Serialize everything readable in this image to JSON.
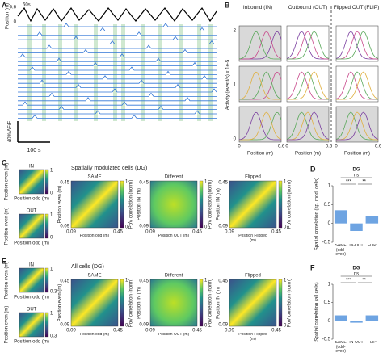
{
  "panels": {
    "A": {
      "label": "A",
      "y_label": "Position (m)",
      "y_ticks": [
        "0.6",
        "0"
      ],
      "time_label": "60s",
      "scale_y": "40% ΔF/F",
      "scale_x": "100 s"
    },
    "B": {
      "label": "B",
      "columns": [
        "Inbound (IN)",
        "Outbound (OUT)",
        "Flipped OUT (FLIP)"
      ],
      "y_label": "Activity (event/s) x 1e-5",
      "y_ticks": [
        "2",
        "1",
        "0"
      ],
      "x_ticks": [
        "0",
        "0.6"
      ],
      "x_label": "Position (m)"
    },
    "C": {
      "label": "C",
      "title": "Spatially modulated cells (DG)",
      "small_maps": [
        "IN",
        "OUT"
      ],
      "small_y_label": "Position even (m)",
      "small_x_label": "Position odd (m)",
      "small_colorbar_ticks": [
        "1",
        "0"
      ],
      "maps": [
        {
          "title": "SAME",
          "y_label": "Position even (m)",
          "x_label": "Position odd (m)"
        },
        {
          "title": "Different",
          "y_label": "Position IN (m)",
          "x_label": "Position OUT (m)"
        },
        {
          "title": "Flipped",
          "y_label": "Position IN (m)",
          "x_label": "Position Flipped (m)"
        }
      ],
      "ticks": [
        "0.45",
        "0.09"
      ],
      "colorbar_ticks": [
        "1",
        "0"
      ],
      "colorbar_label": "PoV correlation (norm)"
    },
    "E": {
      "label": "E",
      "title": "All cells (DG)",
      "small_maps": [
        "IN",
        "OUT"
      ],
      "small_y_label": "Position even (m)",
      "small_x_label": "Position odd (m)",
      "small_colorbar_ticks": [
        "1",
        "0.3"
      ],
      "maps": [
        {
          "title": "SAME",
          "y_label": "Position even (m)",
          "x_label": "Position odd (m)"
        },
        {
          "title": "Different",
          "y_label": "Position IN (m)",
          "x_label": "Position OUT (m)"
        },
        {
          "title": "Flipped",
          "y_label": "Position IN (m)",
          "x_label": "Position Flipped (m)"
        }
      ],
      "ticks": [
        "0.45",
        "0.09"
      ],
      "colorbar_ticks": [
        "1",
        "0"
      ],
      "colorbar_label": "PoV correlation (norm)"
    }
  },
  "chart_data": [
    {
      "type": "bar",
      "label": "D",
      "title": "DG",
      "y_label": "Spatial correlation (sp. mod. cells)",
      "categories": [
        "SAME (odd-even)",
        "IN-OUT",
        "FLIP"
      ],
      "values": [
        0.35,
        -0.2,
        0.2
      ],
      "color": "#3d86d8",
      "ylim": [
        -0.5,
        1
      ],
      "yticks": [
        -0.5,
        0,
        0.5,
        1
      ],
      "annotations": [
        "ns",
        "***",
        "**"
      ]
    },
    {
      "type": "bar",
      "label": "F",
      "title": "DG",
      "y_label": "Spatial correlation (all cells)",
      "categories": [
        "SAME (odd-even)",
        "IN-OUT",
        "FLIP"
      ],
      "values": [
        0.15,
        -0.05,
        0.15
      ],
      "color": "#3d86d8",
      "ylim": [
        -0.5,
        1
      ],
      "yticks": [
        -0.5,
        0,
        0.5,
        1
      ],
      "annotations": [
        "ns",
        "***",
        "**"
      ]
    }
  ]
}
